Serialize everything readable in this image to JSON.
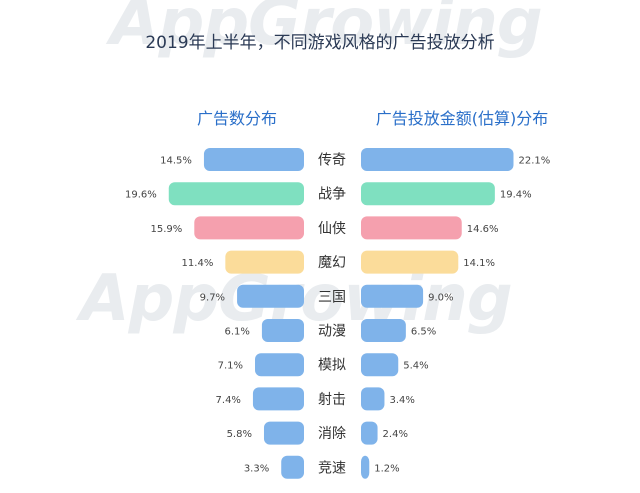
{
  "chart_data": {
    "type": "bar",
    "title": "2019年上半年，不同游戏风格的广告投放分析",
    "watermark": "AppGrowing",
    "categories": [
      "传奇",
      "战争",
      "仙侠",
      "魔幻",
      "三国",
      "动漫",
      "模拟",
      "射击",
      "消除",
      "竞速"
    ],
    "series": [
      {
        "name": "广告数分布",
        "values": [
          14.5,
          19.6,
          15.9,
          11.4,
          9.7,
          6.1,
          7.1,
          7.4,
          5.8,
          3.3
        ],
        "labels": [
          "14.5%",
          "19.6%",
          "15.9%",
          "11.4%",
          "9.7%",
          "6.1%",
          "7.1%",
          "7.4%",
          "5.8%",
          "3.3%"
        ]
      },
      {
        "name": "广告投放金额(估算)分布",
        "values": [
          22.1,
          19.4,
          14.6,
          14.1,
          9.0,
          6.5,
          5.4,
          3.4,
          2.4,
          1.2
        ],
        "labels": [
          "22.1%",
          "19.4%",
          "14.6%",
          "14.1%",
          "9.0%",
          "6.5%",
          "5.4%",
          "3.4%",
          "2.4%",
          "1.2%"
        ]
      }
    ],
    "colors": {
      "blue": "#7fb3ea",
      "green": "#7fe0c0",
      "pink": "#f5a0ae",
      "yellow": "#fbdc9a",
      "title": "#2b3a55",
      "heading": "#2a6fc9",
      "label": "#444444"
    },
    "bar_colors": [
      "blue",
      "green",
      "pink",
      "yellow",
      "blue",
      "blue",
      "blue",
      "blue",
      "blue",
      "blue"
    ]
  }
}
